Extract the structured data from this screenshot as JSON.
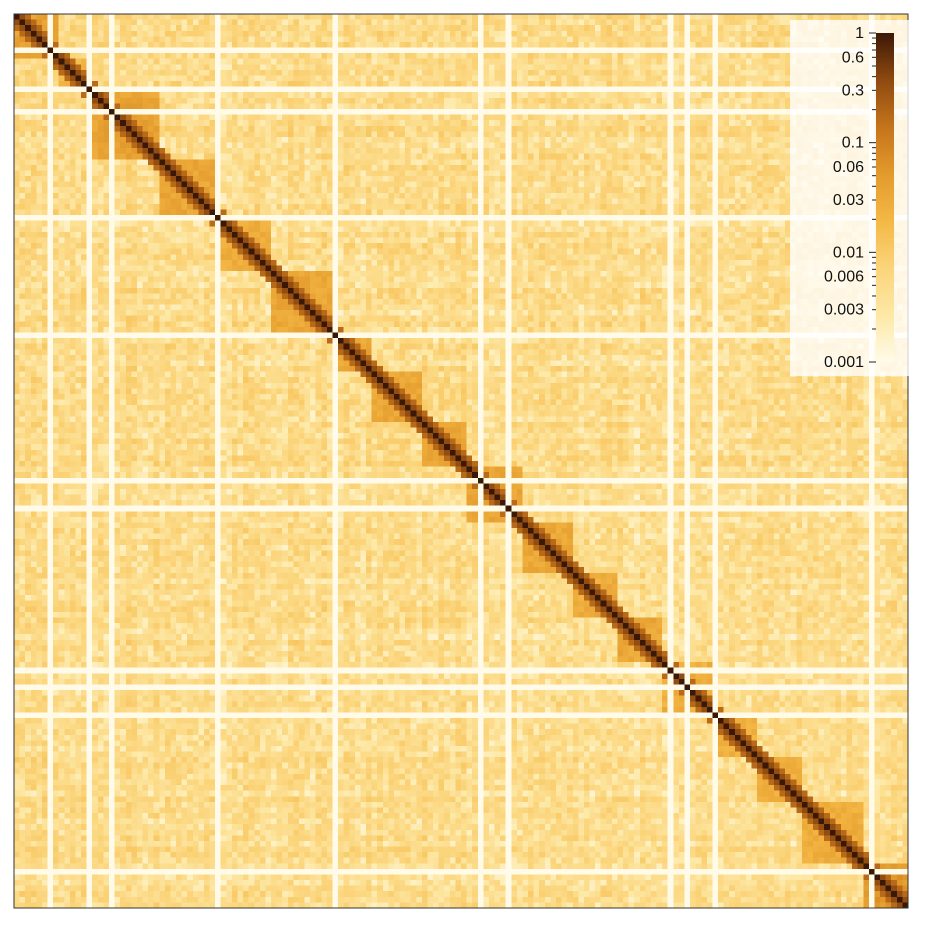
{
  "chart_data": {
    "type": "heatmap",
    "title": "",
    "xlabel": "",
    "ylabel": "",
    "color_scale": "log",
    "value_range": [
      0.001,
      1
    ],
    "colormap": [
      "#fffbe8",
      "#fde8a6",
      "#fbd47a",
      "#f4b845",
      "#e39a2c",
      "#c4741b",
      "#8f4a10",
      "#3b1806"
    ],
    "diagonal_value": 1,
    "background_value_range": [
      0.002,
      0.008
    ],
    "domain_blocks": [
      {
        "start": 0.0,
        "end": 0.045,
        "value": 0.06
      },
      {
        "start": 0.045,
        "end": 0.085,
        "value": 0.03
      },
      {
        "start": 0.085,
        "end": 0.16,
        "value": 0.06
      },
      {
        "start": 0.16,
        "end": 0.225,
        "value": 0.05
      },
      {
        "start": 0.225,
        "end": 0.285,
        "value": 0.04
      },
      {
        "start": 0.285,
        "end": 0.355,
        "value": 0.05
      },
      {
        "start": 0.355,
        "end": 0.4,
        "value": 0.05
      },
      {
        "start": 0.4,
        "end": 0.455,
        "value": 0.05
      },
      {
        "start": 0.455,
        "end": 0.505,
        "value": 0.05
      },
      {
        "start": 0.505,
        "end": 0.565,
        "value": 0.05
      },
      {
        "start": 0.565,
        "end": 0.625,
        "value": 0.05
      },
      {
        "start": 0.625,
        "end": 0.67,
        "value": 0.04
      },
      {
        "start": 0.67,
        "end": 0.72,
        "value": 0.05
      },
      {
        "start": 0.72,
        "end": 0.78,
        "value": 0.04
      },
      {
        "start": 0.78,
        "end": 0.83,
        "value": 0.035
      },
      {
        "start": 0.83,
        "end": 0.88,
        "value": 0.04
      },
      {
        "start": 0.88,
        "end": 0.95,
        "value": 0.04
      },
      {
        "start": 0.95,
        "end": 1.0,
        "value": 0.08
      }
    ],
    "gap_positions": [
      0.04,
      0.085,
      0.112,
      0.225,
      0.362,
      0.52,
      0.555,
      0.735,
      0.752,
      0.785,
      0.96
    ],
    "legend": {
      "position": "top-right",
      "ticks": [
        {
          "value": 1,
          "label": "1"
        },
        {
          "value": 0.6,
          "label": "0.6"
        },
        {
          "value": 0.3,
          "label": "0.3"
        },
        {
          "value": 0.1,
          "label": "0.1"
        },
        {
          "value": 0.06,
          "label": "0.06"
        },
        {
          "value": 0.03,
          "label": "0.03"
        },
        {
          "value": 0.01,
          "label": "0.01"
        },
        {
          "value": 0.006,
          "label": "0.006"
        },
        {
          "value": 0.003,
          "label": "0.003"
        },
        {
          "value": 0.001,
          "label": "0.001"
        }
      ]
    }
  }
}
